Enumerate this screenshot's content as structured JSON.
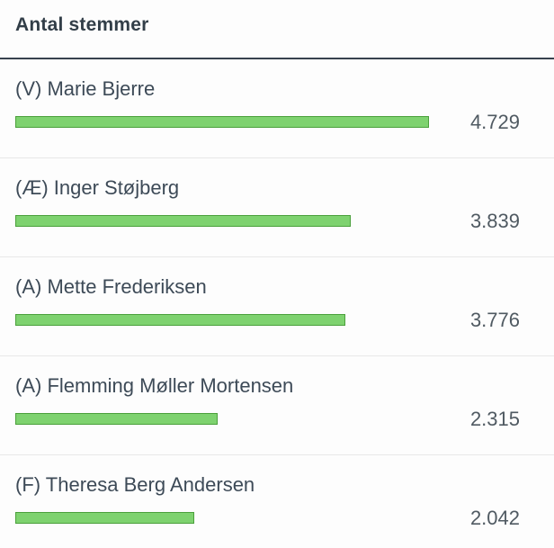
{
  "header": {
    "title": "Antal stemmer"
  },
  "chart_data": {
    "type": "bar",
    "orientation": "horizontal",
    "title": "Antal stemmer",
    "categories": [
      "(V) Marie Bjerre",
      "(Æ) Inger Støjberg",
      "(A) Mette Frederiksen",
      "(A) Flemming Møller Mortensen",
      "(F) Theresa Berg Andersen"
    ],
    "values": [
      4729,
      3839,
      3776,
      2315,
      2042
    ],
    "value_labels": [
      "4.729",
      "3.839",
      "3.776",
      "2.315",
      "2.042"
    ],
    "xlabel": "",
    "ylabel": "",
    "xlim": [
      0,
      4729
    ],
    "grid": false,
    "legend": false,
    "bar_color": "#7ed26f",
    "bar_border_color": "#4ba03c",
    "divider_color": "#e8e8e8",
    "header_divider_color": "#37424e"
  }
}
